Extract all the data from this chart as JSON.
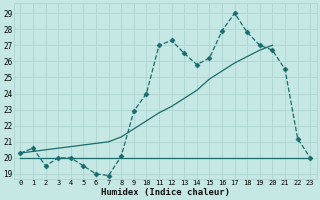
{
  "title": "",
  "xlabel": "Humidex (Indice chaleur)",
  "bg_color": "#c5e8e5",
  "grid_color": "#aed4d0",
  "line_color": "#1a6b6b",
  "x_ticks": [
    0,
    1,
    2,
    3,
    4,
    5,
    6,
    7,
    8,
    9,
    10,
    11,
    12,
    13,
    14,
    15,
    16,
    17,
    18,
    19,
    20,
    21,
    22,
    23
  ],
  "y_ticks": [
    19,
    20,
    21,
    22,
    23,
    24,
    25,
    26,
    27,
    28,
    29
  ],
  "xlim": [
    -0.5,
    23.5
  ],
  "ylim": [
    18.7,
    29.6
  ],
  "series1_x": [
    0,
    1,
    2,
    3,
    4,
    5,
    6,
    7,
    8,
    9,
    10,
    11,
    12,
    13,
    14,
    15,
    16,
    17,
    18,
    19,
    20,
    21,
    22,
    23
  ],
  "series1_y": [
    20.3,
    20.6,
    19.5,
    20.0,
    20.0,
    19.5,
    19.0,
    18.9,
    20.1,
    22.9,
    24.0,
    27.0,
    27.3,
    26.5,
    25.8,
    26.2,
    27.9,
    29.0,
    27.8,
    27.0,
    26.7,
    25.5,
    21.2,
    20.0
  ],
  "series2_x": [
    0,
    14,
    20,
    23
  ],
  "series2_y": [
    20.0,
    20.0,
    20.0,
    20.0
  ],
  "series3_x": [
    0,
    7,
    8,
    9,
    10,
    11,
    12,
    13,
    14,
    15,
    16,
    17,
    18,
    19,
    20
  ],
  "series3_y": [
    20.3,
    21.0,
    21.3,
    21.8,
    22.3,
    22.8,
    23.2,
    23.7,
    24.2,
    24.9,
    25.4,
    25.9,
    26.3,
    26.7,
    27.0
  ]
}
